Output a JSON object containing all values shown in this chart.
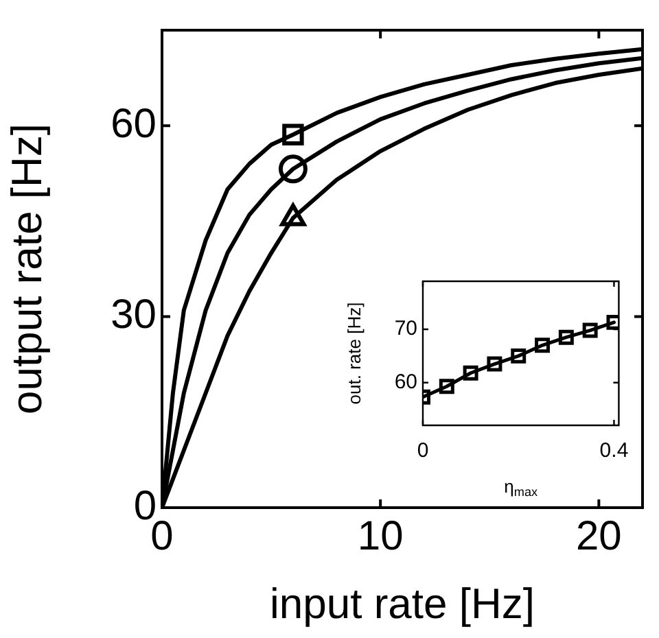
{
  "chart_data": [
    {
      "type": "line",
      "xlabel": "input rate [Hz]",
      "ylabel": "output rate [Hz]",
      "xlim": [
        0,
        22
      ],
      "ylim": [
        0,
        75
      ],
      "xticks": [
        0,
        10,
        20
      ],
      "yticks": [
        0,
        30,
        60
      ],
      "marker": "none",
      "line_style": "solid",
      "series": [
        {
          "color": "#000000",
          "x": [
            0,
            0.5,
            1,
            2,
            3,
            4,
            5,
            6,
            8,
            10,
            12,
            14,
            16,
            18,
            20,
            22
          ],
          "values": [
            0,
            18,
            31,
            42,
            50,
            54,
            57,
            58.6,
            62,
            64.5,
            66.5,
            68,
            69.5,
            70.5,
            71.3,
            72
          ]
        },
        {
          "color": "#000000",
          "x": [
            0,
            1,
            2,
            3,
            4,
            5,
            6,
            8,
            10,
            12,
            14,
            16,
            18,
            20,
            22
          ],
          "values": [
            0,
            18,
            31,
            40,
            46,
            50,
            53.2,
            57.5,
            61,
            63.5,
            65.5,
            67.3,
            68.7,
            69.8,
            70.6
          ]
        },
        {
          "color": "#000000",
          "x": [
            0,
            1,
            2,
            3,
            4,
            5,
            6,
            8,
            10,
            12,
            14,
            16,
            18,
            20,
            22
          ],
          "values": [
            0,
            9,
            18,
            27,
            34,
            40,
            45.5,
            51.5,
            56,
            59.5,
            62.5,
            64.8,
            66.7,
            68,
            69
          ]
        },
        {
          "type": "scatter",
          "marker": "square",
          "color": "#000000",
          "x": [
            6
          ],
          "values": [
            58.6
          ]
        },
        {
          "type": "scatter",
          "marker": "circle",
          "color": "#000000",
          "x": [
            6
          ],
          "values": [
            53.2
          ]
        },
        {
          "type": "scatter",
          "marker": "triangle",
          "color": "#000000",
          "x": [
            6
          ],
          "values": [
            45.5
          ]
        }
      ]
    },
    {
      "type": "line",
      "xlabel": "η$_{max}$",
      "ylabel": "out. rate [Hz]",
      "xlim": [
        0,
        0.41
      ],
      "ylim": [
        52,
        79
      ],
      "xticks": [
        0,
        0.4
      ],
      "yticks": [
        60,
        70
      ],
      "marker": "square",
      "line_style": "solid",
      "series": [
        {
          "color": "#000000",
          "x": [
            0,
            0.05,
            0.1,
            0.15,
            0.2,
            0.25,
            0.3,
            0.35,
            0.4
          ],
          "values": [
            57.3,
            59.3,
            61.8,
            63.5,
            65,
            67,
            68.5,
            69.8,
            71.3
          ]
        }
      ]
    }
  ]
}
